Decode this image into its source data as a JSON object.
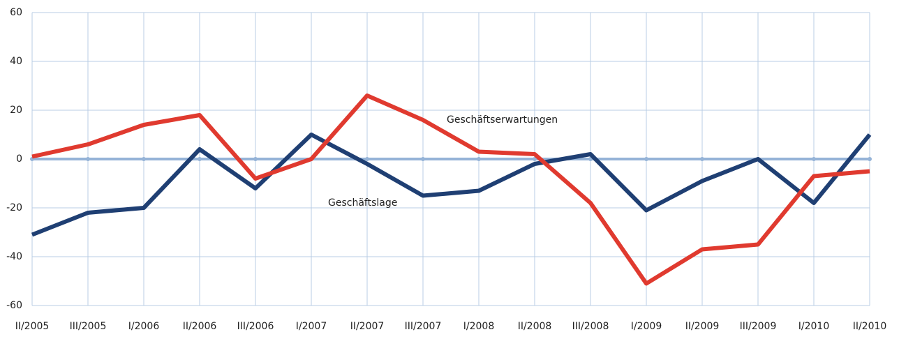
{
  "chart_data": {
    "type": "line",
    "categories": [
      "II/2005",
      "III/2005",
      "I/2006",
      "II/2006",
      "III/2006",
      "I/2007",
      "II/2007",
      "III/2007",
      "I/2008",
      "II/2008",
      "III/2008",
      "I/2009",
      "II/2009",
      "III/2009",
      "I/2010",
      "II/2010"
    ],
    "series": [
      {
        "name": "Geschäftslage",
        "color": "#1f3f73",
        "values": [
          -31,
          -22,
          -20,
          4,
          -12,
          10,
          -2,
          -15,
          -13,
          -2,
          2,
          -21,
          -9,
          0,
          -18,
          10
        ]
      },
      {
        "name": "Geschäftserwartungen",
        "color": "#e03a2f",
        "values": [
          1,
          6,
          14,
          18,
          -8,
          0,
          26,
          16,
          3,
          2,
          -18,
          -51,
          -37,
          -35,
          -7,
          -5
        ]
      }
    ],
    "ylim": [
      -60,
      60
    ],
    "yticks": [
      -60,
      -40,
      -20,
      0,
      20,
      40,
      60
    ],
    "grid": true
  }
}
